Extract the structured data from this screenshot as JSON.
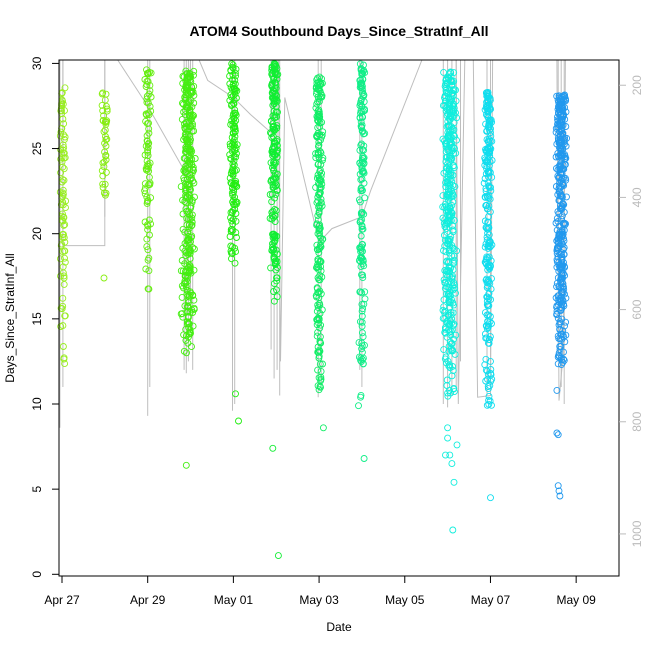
{
  "chart_data": {
    "type": "scatter",
    "title": "ATOM4 Southbound Days_Since_StratInf_All",
    "xlabel": "Date",
    "ylabel": "Days_Since_StratInf_All",
    "xlim": [
      -0.07,
      13.0
    ],
    "ylim": [
      -0.1,
      30.2
    ],
    "x_ticks": [
      {
        "x": 0,
        "label": "Apr 27"
      },
      {
        "x": 2,
        "label": "Apr 29"
      },
      {
        "x": 4,
        "label": "May 01"
      },
      {
        "x": 6,
        "label": "May 03"
      },
      {
        "x": 8,
        "label": "May 05"
      },
      {
        "x": 10,
        "label": "May 07"
      },
      {
        "x": 12,
        "label": "May 09"
      }
    ],
    "y_ticks": [
      0,
      5,
      10,
      15,
      20,
      25,
      30
    ],
    "y2_label": "",
    "y2_lim": [
      1075,
      155
    ],
    "y2_ticks": [
      200,
      400,
      600,
      800,
      1000
    ],
    "grid": false,
    "legend": "none",
    "line_color": "#bebebe",
    "flight_path": [
      [
        0.02,
        30.2
      ],
      [
        0.02,
        19.3
      ],
      [
        1.0,
        19.3
      ],
      [
        1.0,
        30.2
      ],
      [
        1.3,
        30.2
      ],
      [
        2.0,
        27.5
      ],
      [
        2.9,
        23.5
      ],
      [
        3.0,
        30.2
      ],
      [
        3.2,
        30.2
      ],
      [
        3.4,
        29.0
      ],
      [
        4.0,
        28.0
      ],
      [
        4.4,
        27.0
      ],
      [
        4.85,
        26.0
      ],
      [
        5.0,
        30.2
      ],
      [
        5.05,
        30.2
      ],
      [
        5.1,
        12.5
      ],
      [
        5.2,
        28.0
      ],
      [
        6.0,
        19.5
      ],
      [
        6.3,
        20.3
      ],
      [
        7.0,
        21.0
      ],
      [
        7.2,
        22.5
      ],
      [
        8.4,
        30.2
      ],
      [
        9.2,
        30.2
      ],
      [
        9.25,
        10.0
      ],
      [
        9.4,
        30.2
      ],
      [
        9.6,
        30.2
      ],
      [
        9.7,
        10.4
      ],
      [
        10.0,
        10.5
      ],
      [
        10.05,
        30.2
      ],
      [
        11.0,
        30.2
      ],
      [
        11.55,
        30.2
      ],
      [
        11.6,
        10.2
      ],
      [
        11.7,
        13.0
      ],
      [
        11.75,
        30.2
      ]
    ],
    "series": [
      {
        "x_center": 0.02,
        "x_spread": 0.08,
        "color": "#99ee22",
        "y_min": 11.5,
        "y_max": 28.6,
        "n": 90,
        "extra": [
          [
            0.05,
            17.4
          ]
        ],
        "line_tops": [
          [
            -0.05,
            30.2,
            8.6
          ],
          [
            0.02,
            30.2,
            11.0
          ]
        ]
      },
      {
        "x_center": 1.0,
        "x_spread": 0.07,
        "color": "#88ee11",
        "y_min": 21.5,
        "y_max": 28.3,
        "n": 40,
        "extra": [
          [
            0.98,
            17.4
          ]
        ],
        "line_tops": [
          [
            1.0,
            30.2,
            21.0
          ]
        ]
      },
      {
        "x_center": 2.0,
        "x_spread": 0.09,
        "color": "#66ee11",
        "y_min": 16.4,
        "y_max": 29.8,
        "n": 80,
        "extra": [],
        "line_tops": [
          [
            2.0,
            30.2,
            9.3
          ],
          [
            2.05,
            30.2,
            11.0
          ]
        ]
      },
      {
        "x_center": 2.95,
        "x_spread": 0.17,
        "color": "#44ee11",
        "y_min": 12.8,
        "y_max": 29.6,
        "n": 320,
        "extra": [
          [
            2.9,
            6.4
          ]
        ],
        "line_tops": [
          [
            2.85,
            30.2,
            12.0
          ],
          [
            2.9,
            30.2,
            11.8
          ],
          [
            2.95,
            30.2,
            12.5
          ],
          [
            3.0,
            30.2,
            14.2
          ],
          [
            3.05,
            30.2,
            12.0
          ]
        ]
      },
      {
        "x_center": 4.0,
        "x_spread": 0.1,
        "color": "#22ee11",
        "y_min": 18.0,
        "y_max": 30.0,
        "n": 140,
        "extra": [
          [
            4.05,
            10.6
          ],
          [
            4.12,
            9.0
          ]
        ],
        "line_tops": [
          [
            3.98,
            30.2,
            9.6
          ],
          [
            4.03,
            30.2,
            10.0
          ]
        ]
      },
      {
        "x_center": 4.95,
        "x_spread": 0.1,
        "color": "#11ee33",
        "y_min": 16.0,
        "y_max": 30.0,
        "n": 190,
        "extra": [
          [
            4.92,
            7.4
          ],
          [
            5.05,
            1.1
          ]
        ],
        "line_tops": [
          [
            4.88,
            30.2,
            13.2
          ],
          [
            4.95,
            30.2,
            11.5
          ],
          [
            5.02,
            30.2,
            12.0
          ],
          [
            5.08,
            30.2,
            10.5
          ]
        ]
      },
      {
        "x_center": 6.0,
        "x_spread": 0.1,
        "color": "#11ee66",
        "y_min": 10.5,
        "y_max": 29.2,
        "n": 210,
        "extra": [
          [
            6.1,
            8.6
          ]
        ],
        "line_tops": [
          [
            5.98,
            30.2,
            10.4
          ],
          [
            6.05,
            30.2,
            11.2
          ]
        ]
      },
      {
        "x_center": 7.0,
        "x_spread": 0.08,
        "color": "#11ee88",
        "y_min": 10.0,
        "y_max": 30.0,
        "n": 160,
        "extra": [
          [
            6.92,
            9.9
          ],
          [
            6.97,
            10.4
          ],
          [
            7.05,
            6.8
          ]
        ],
        "line_tops": [
          [
            6.95,
            30.2,
            12.0
          ],
          [
            7.0,
            30.2,
            11.0
          ]
        ]
      },
      {
        "x_center": 9.05,
        "x_spread": 0.17,
        "color": "#11eedd",
        "y_min": 10.3,
        "y_max": 29.5,
        "n": 380,
        "extra": [
          [
            8.95,
            7.0
          ],
          [
            9.0,
            8.6
          ],
          [
            9.0,
            8.0
          ],
          [
            9.05,
            7.0
          ],
          [
            9.1,
            6.5
          ],
          [
            9.15,
            5.4
          ],
          [
            9.12,
            2.6
          ],
          [
            9.22,
            7.6
          ]
        ],
        "line_tops": [
          [
            8.9,
            30.2,
            10.0
          ],
          [
            9.0,
            30.2,
            9.8
          ],
          [
            9.1,
            30.2,
            10.5
          ],
          [
            9.2,
            30.2,
            11.0
          ],
          [
            9.3,
            30.2,
            12.5
          ]
        ]
      },
      {
        "x_center": 9.95,
        "x_spread": 0.1,
        "color": "#11ddee",
        "y_min": 9.5,
        "y_max": 28.3,
        "n": 230,
        "extra": [
          [
            10.0,
            4.5
          ]
        ],
        "line_tops": [
          [
            9.92,
            30.2,
            10.5
          ],
          [
            10.0,
            30.2,
            12.0
          ]
        ]
      },
      {
        "x_center": 11.65,
        "x_spread": 0.14,
        "color": "#2299ee",
        "y_min": 12.0,
        "y_max": 28.2,
        "n": 360,
        "extra": [
          [
            11.55,
            8.3
          ],
          [
            11.58,
            8.2
          ],
          [
            11.58,
            5.2
          ],
          [
            11.6,
            4.9
          ],
          [
            11.62,
            4.6
          ],
          [
            11.55,
            10.8
          ]
        ],
        "line_tops": [
          [
            11.58,
            30.2,
            13.0
          ],
          [
            11.65,
            30.2,
            11.0
          ],
          [
            11.72,
            30.2,
            10.0
          ]
        ]
      }
    ]
  }
}
